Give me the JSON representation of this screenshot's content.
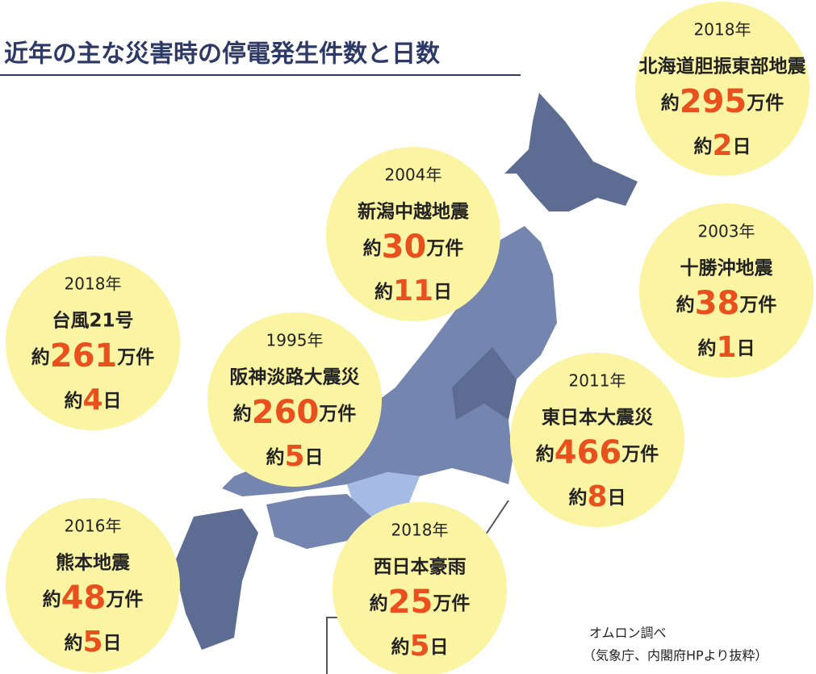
{
  "header": {
    "title": "近年の主な災害時の停電発生件数と日数"
  },
  "events": [
    {
      "year": "2018年",
      "name": "北海道胆振東部地震",
      "count_prefix": "約",
      "count": 295,
      "count_unit": "万件",
      "days_prefix": "約",
      "days": 2,
      "days_unit": "日"
    },
    {
      "year": "2004年",
      "name": "新潟中越地震",
      "count_prefix": "約",
      "count": 30,
      "count_unit": "万件",
      "days_prefix": "約",
      "days": 11,
      "days_unit": "日"
    },
    {
      "year": "2003年",
      "name": "十勝沖地震",
      "count_prefix": "約",
      "count": 38,
      "count_unit": "万件",
      "days_prefix": "約",
      "days": 1,
      "days_unit": "日"
    },
    {
      "year": "2018年",
      "name": "台風21号",
      "count_prefix": "約",
      "count": 261,
      "count_unit": "万件",
      "days_prefix": "約",
      "days": 4,
      "days_unit": "日"
    },
    {
      "year": "1995年",
      "name": "阪神淡路大震災",
      "count_prefix": "約",
      "count": 260,
      "count_unit": "万件",
      "days_prefix": "約",
      "days": 5,
      "days_unit": "日"
    },
    {
      "year": "2011年",
      "name": "東日本大震災",
      "count_prefix": "約",
      "count": 466,
      "count_unit": "万件",
      "days_prefix": "約",
      "days": 8,
      "days_unit": "日"
    },
    {
      "year": "2016年",
      "name": "熊本地震",
      "count_prefix": "約",
      "count": 48,
      "count_unit": "万件",
      "days_prefix": "約",
      "days": 5,
      "days_unit": "日"
    },
    {
      "year": "2018年",
      "name": "西日本豪雨",
      "count_prefix": "約",
      "count": 25,
      "count_unit": "万件",
      "days_prefix": "約",
      "days": 5,
      "days_unit": "日"
    }
  ],
  "source": {
    "line1": "オムロン調べ",
    "line2": "（気象庁、内閣府HPより抜粋）"
  }
}
